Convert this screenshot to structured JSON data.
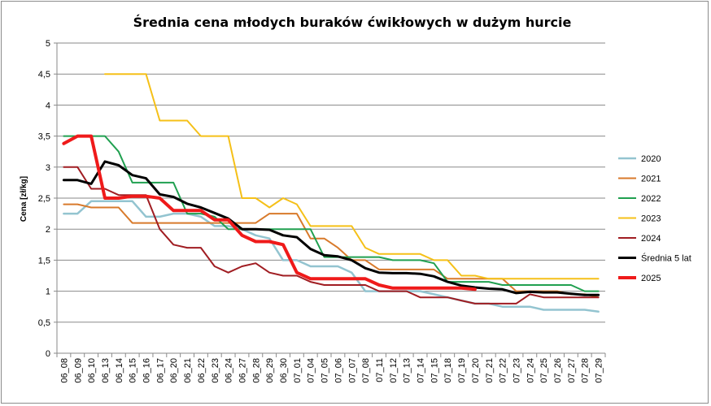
{
  "chart_data": {
    "type": "line",
    "title": "Średnia cena młodych buraków ćwikłowych w dużym hurcie",
    "xlabel": "",
    "ylabel": "Cena [zł/kg]",
    "ylim": [
      0,
      5
    ],
    "yticks": [
      "0",
      "0,5",
      "1",
      "1,5",
      "2",
      "2,5",
      "3",
      "3,5",
      "4",
      "4,5",
      "5"
    ],
    "grid": "horizontal",
    "legend_position": "right",
    "categories": [
      "06_08",
      "06_09",
      "06_10",
      "06_13",
      "06_14",
      "06_15",
      "06_16",
      "06_17",
      "06_20",
      "06_21",
      "06_22",
      "06_23",
      "06_24",
      "06_27",
      "06_28",
      "06_29",
      "06_30",
      "07_01",
      "07_04",
      "07_05",
      "07_06",
      "07_07",
      "07_08",
      "07_11",
      "07_12",
      "07_13",
      "07_14",
      "07_15",
      "07_18",
      "07_19",
      "07_20",
      "07_21",
      "07_22",
      "07_23",
      "07_24",
      "07_25",
      "07_26",
      "07_27",
      "07_28",
      "07_29"
    ],
    "series": [
      {
        "name": "2020",
        "color": "#93c4d0",
        "width": 2.5,
        "values": [
          2.25,
          2.25,
          2.45,
          2.45,
          2.45,
          2.45,
          2.2,
          2.2,
          2.25,
          2.25,
          2.2,
          2.05,
          2.05,
          2.0,
          1.9,
          1.85,
          1.5,
          1.5,
          1.4,
          1.4,
          1.4,
          1.3,
          1.0,
          1.0,
          1.0,
          1.0,
          1.0,
          0.95,
          0.9,
          0.85,
          0.8,
          0.8,
          0.75,
          0.75,
          0.75,
          0.7,
          0.7,
          0.7,
          0.7,
          0.67
        ]
      },
      {
        "name": "2021",
        "color": "#d87a2b",
        "width": 2,
        "values": [
          2.4,
          2.4,
          2.35,
          2.35,
          2.35,
          2.1,
          2.1,
          2.1,
          2.1,
          2.1,
          2.1,
          2.1,
          2.1,
          2.1,
          2.1,
          2.25,
          2.25,
          2.25,
          1.85,
          1.85,
          1.7,
          1.5,
          1.5,
          1.35,
          1.35,
          1.35,
          1.35,
          1.35,
          1.2,
          1.2,
          1.2,
          1.2,
          1.2,
          1.0,
          1.0,
          1.0,
          1.0,
          0.95,
          0.95,
          0.9
        ]
      },
      {
        "name": "2022",
        "color": "#20a050",
        "width": 2,
        "values": [
          3.5,
          3.5,
          3.5,
          3.5,
          3.25,
          2.75,
          2.75,
          2.75,
          2.75,
          2.25,
          2.25,
          2.2,
          2.0,
          2.0,
          2.0,
          2.0,
          2.0,
          2.0,
          2.0,
          1.55,
          1.55,
          1.55,
          1.55,
          1.55,
          1.5,
          1.5,
          1.5,
          1.45,
          1.15,
          1.15,
          1.15,
          1.15,
          1.1,
          1.1,
          1.1,
          1.1,
          1.1,
          1.1,
          1.0,
          1.0
        ]
      },
      {
        "name": "2023",
        "color": "#f5c018",
        "width": 2,
        "values": [
          null,
          null,
          null,
          4.5,
          4.5,
          4.5,
          4.5,
          3.75,
          3.75,
          3.75,
          3.5,
          3.5,
          3.5,
          2.5,
          2.5,
          2.35,
          2.5,
          2.4,
          2.05,
          2.05,
          2.05,
          2.05,
          1.7,
          1.6,
          1.6,
          1.6,
          1.6,
          1.5,
          1.5,
          1.25,
          1.25,
          1.2,
          1.2,
          1.2,
          1.2,
          1.2,
          1.2,
          1.2,
          1.2,
          1.2
        ]
      },
      {
        "name": "2024",
        "color": "#a01d22",
        "width": 2,
        "values": [
          3.0,
          3.0,
          2.65,
          2.65,
          2.55,
          2.55,
          2.55,
          2.0,
          1.75,
          1.7,
          1.7,
          1.4,
          1.3,
          1.4,
          1.45,
          1.3,
          1.25,
          1.25,
          1.15,
          1.1,
          1.1,
          1.1,
          1.1,
          1.0,
          1.0,
          1.0,
          0.9,
          0.9,
          0.9,
          0.85,
          0.8,
          0.8,
          0.8,
          0.8,
          0.95,
          0.9,
          0.9,
          0.9,
          0.9,
          0.9
        ]
      },
      {
        "name": "Średnia 5 lat",
        "color": "#000000",
        "width": 3,
        "values": [
          2.79,
          2.79,
          2.73,
          3.09,
          3.03,
          2.87,
          2.82,
          2.56,
          2.52,
          2.41,
          2.35,
          2.26,
          2.17,
          2.0,
          2.0,
          1.99,
          1.9,
          1.87,
          1.68,
          1.58,
          1.56,
          1.5,
          1.37,
          1.3,
          1.29,
          1.29,
          1.28,
          1.24,
          1.15,
          1.09,
          1.06,
          1.04,
          1.03,
          0.97,
          0.99,
          0.98,
          0.98,
          0.96,
          0.94,
          0.94
        ]
      },
      {
        "name": "2025",
        "color": "#ef1a1a",
        "width": 4,
        "values": [
          3.38,
          3.5,
          3.5,
          2.5,
          2.5,
          2.53,
          2.53,
          2.5,
          2.3,
          2.3,
          2.3,
          2.15,
          2.15,
          1.9,
          1.8,
          1.8,
          1.75,
          1.3,
          1.2,
          1.2,
          1.2,
          1.2,
          1.2,
          1.1,
          1.05,
          1.05,
          1.05,
          1.05,
          1.05,
          1.05,
          1.03,
          null,
          null,
          null,
          null,
          null,
          null,
          null,
          null,
          null
        ]
      }
    ]
  }
}
